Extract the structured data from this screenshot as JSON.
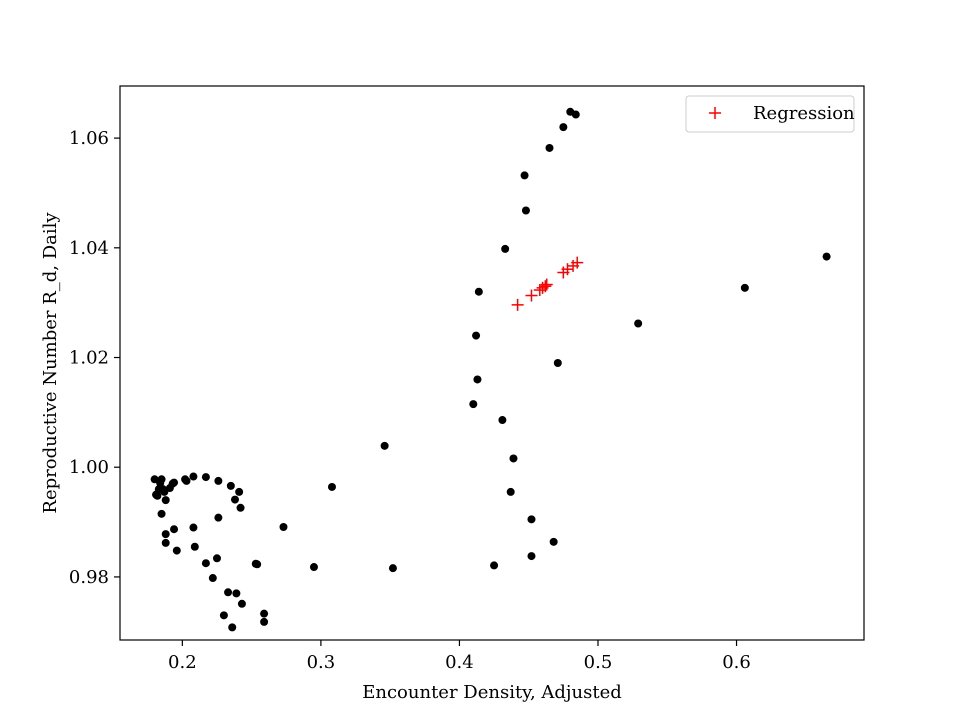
{
  "chart_data": {
    "type": "scatter",
    "title": "",
    "xlabel": "Encounter Density, Adjusted",
    "ylabel": "Reproductive Number R_d, Daily",
    "xlim": [
      0.155,
      0.692
    ],
    "ylim": [
      0.9685,
      1.0695
    ],
    "xticks": [
      0.2,
      0.3,
      0.4,
      0.5,
      0.6
    ],
    "xtick_labels": [
      "0.2",
      "0.3",
      "0.4",
      "0.5",
      "0.6"
    ],
    "yticks": [
      0.98,
      1.0,
      1.02,
      1.04,
      1.06
    ],
    "ytick_labels": [
      "0.98",
      "1.00",
      "1.02",
      "1.04",
      "1.06"
    ],
    "grid": false,
    "legend": {
      "placement": "top-right",
      "entries": [
        "Regression"
      ]
    },
    "series": [
      {
        "marker": "circle",
        "color": "#000000",
        "points": [
          [
            0.18,
            0.9978
          ],
          [
            0.181,
            0.995
          ],
          [
            0.182,
            0.9948
          ],
          [
            0.183,
            0.996
          ],
          [
            0.184,
            0.9971
          ],
          [
            0.185,
            0.9978
          ],
          [
            0.186,
            0.996
          ],
          [
            0.187,
            0.9955
          ],
          [
            0.188,
            0.994
          ],
          [
            0.185,
            0.9915
          ],
          [
            0.188,
            0.9878
          ],
          [
            0.188,
            0.9862
          ],
          [
            0.191,
            0.9962
          ],
          [
            0.193,
            0.997
          ],
          [
            0.194,
            0.9972
          ],
          [
            0.194,
            0.9887
          ],
          [
            0.196,
            0.9848
          ],
          [
            0.202,
            0.9978
          ],
          [
            0.203,
            0.9975
          ],
          [
            0.208,
            0.9983
          ],
          [
            0.208,
            0.989
          ],
          [
            0.209,
            0.9855
          ],
          [
            0.217,
            0.9982
          ],
          [
            0.217,
            0.9825
          ],
          [
            0.222,
            0.9798
          ],
          [
            0.225,
            0.9834
          ],
          [
            0.226,
            0.9975
          ],
          [
            0.226,
            0.9908
          ],
          [
            0.23,
            0.973
          ],
          [
            0.233,
            0.9772
          ],
          [
            0.235,
            0.9966
          ],
          [
            0.236,
            0.9708
          ],
          [
            0.238,
            0.9941
          ],
          [
            0.239,
            0.977
          ],
          [
            0.241,
            0.9955
          ],
          [
            0.242,
            0.9926
          ],
          [
            0.243,
            0.9751
          ],
          [
            0.253,
            0.9824
          ],
          [
            0.254,
            0.9823
          ],
          [
            0.259,
            0.9733
          ],
          [
            0.259,
            0.9718
          ],
          [
            0.273,
            0.9891
          ],
          [
            0.295,
            0.9818
          ],
          [
            0.308,
            0.9964
          ],
          [
            0.346,
            1.0039
          ],
          [
            0.352,
            0.9816
          ],
          [
            0.41,
            1.0115
          ],
          [
            0.412,
            1.024
          ],
          [
            0.413,
            1.016
          ],
          [
            0.414,
            1.032
          ],
          [
            0.425,
            0.9821
          ],
          [
            0.431,
            1.0086
          ],
          [
            0.433,
            1.0398
          ],
          [
            0.437,
            0.9955
          ],
          [
            0.439,
            1.0016
          ],
          [
            0.447,
            1.0532
          ],
          [
            0.448,
            1.0468
          ],
          [
            0.452,
            0.9905
          ],
          [
            0.452,
            0.9838
          ],
          [
            0.465,
            1.0582
          ],
          [
            0.468,
            0.9864
          ],
          [
            0.471,
            1.019
          ],
          [
            0.475,
            1.062
          ],
          [
            0.48,
            1.0648
          ],
          [
            0.484,
            1.0643
          ],
          [
            0.529,
            1.0262
          ],
          [
            0.606,
            1.0327
          ],
          [
            0.665,
            1.0384
          ]
        ]
      },
      {
        "name": "Regression",
        "marker": "plus",
        "color": "#ff0000",
        "points": [
          [
            0.442,
            1.0296
          ],
          [
            0.452,
            1.0313
          ],
          [
            0.458,
            1.0323
          ],
          [
            0.46,
            1.0327
          ],
          [
            0.462,
            1.033
          ],
          [
            0.463,
            1.0333
          ],
          [
            0.475,
            1.0355
          ],
          [
            0.478,
            1.0361
          ],
          [
            0.482,
            1.0367
          ],
          [
            0.485,
            1.0373
          ]
        ]
      }
    ]
  }
}
